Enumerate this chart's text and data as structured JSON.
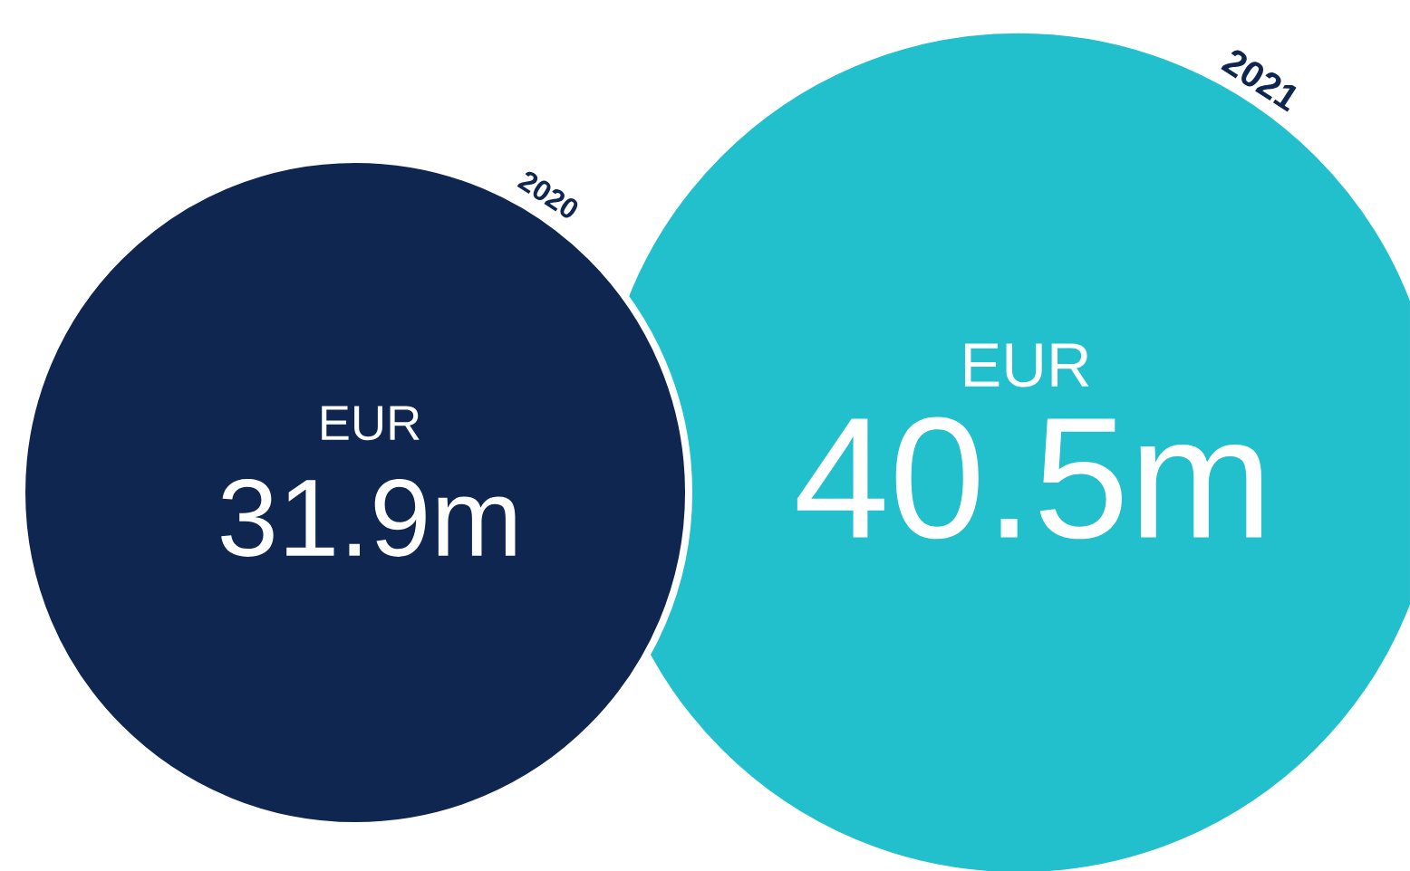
{
  "chart_data": {
    "type": "other",
    "categories": [
      "2020",
      "2021"
    ],
    "values": [
      31.9,
      40.5
    ],
    "value_labels": [
      "31.9m",
      "40.5m"
    ],
    "colors": [
      "#0f2650",
      "#22bfcd"
    ],
    "annotations": [
      "EUR",
      "EUR"
    ]
  }
}
